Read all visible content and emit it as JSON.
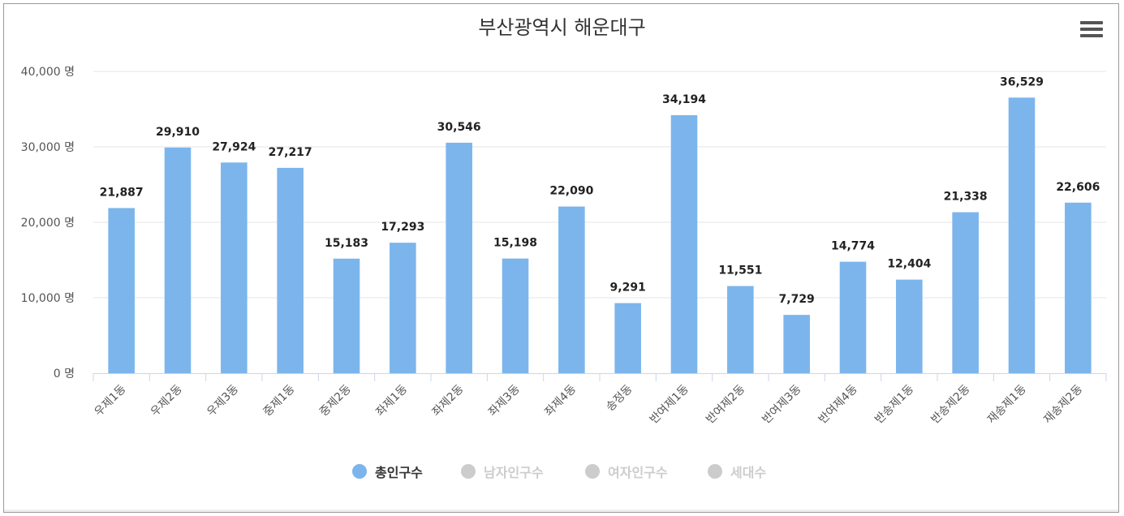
{
  "chart_data": {
    "type": "bar",
    "title": "부산광역시 해운대구",
    "categories": [
      "우제1동",
      "우제2동",
      "우제3동",
      "중제1동",
      "중제2동",
      "좌제1동",
      "좌제2동",
      "좌제3동",
      "좌제4동",
      "송정동",
      "반여제1동",
      "반여제2동",
      "반여제3동",
      "반여제4동",
      "반송제1동",
      "반송제2동",
      "재송제1동",
      "재송제2동"
    ],
    "series": [
      {
        "name": "총인구수",
        "values": [
          21887,
          29910,
          27924,
          27217,
          15183,
          17293,
          30546,
          15198,
          22090,
          9291,
          34194,
          11551,
          7729,
          14774,
          12404,
          21338,
          36529,
          22606
        ],
        "color": "#7cb5ec",
        "visible": true
      }
    ],
    "value_labels": [
      "21,887",
      "29,910",
      "27,924",
      "27,217",
      "15,183",
      "17,293",
      "30,546",
      "15,198",
      "22,090",
      "9,291",
      "34,194",
      "11,551",
      "7,729",
      "14,774",
      "12,404",
      "21,338",
      "36,529",
      "22,606"
    ],
    "ylim": [
      0,
      40000
    ],
    "yticks": [
      0,
      10000,
      20000,
      30000,
      40000
    ],
    "ytick_labels": [
      "0 명",
      "10,000 명",
      "20,000 명",
      "30,000 명",
      "40,000 명"
    ],
    "grid": true,
    "legend_position": "bottom-center",
    "legend": [
      {
        "label": "총인구수",
        "color": "#7cb5ec",
        "active": true
      },
      {
        "label": "남자인구수",
        "color": "#cccccc",
        "active": false
      },
      {
        "label": "여자인구수",
        "color": "#cccccc",
        "active": false
      },
      {
        "label": "세대수",
        "color": "#cccccc",
        "active": false
      }
    ]
  },
  "colors": {
    "bar": "#7cb5ec",
    "grid": "#e6e6e6",
    "axis": "#ccd6eb",
    "legend_active_text": "#333333",
    "legend_inactive_text": "#cccccc"
  },
  "icons": {
    "menu": "hamburger-menu-icon"
  }
}
